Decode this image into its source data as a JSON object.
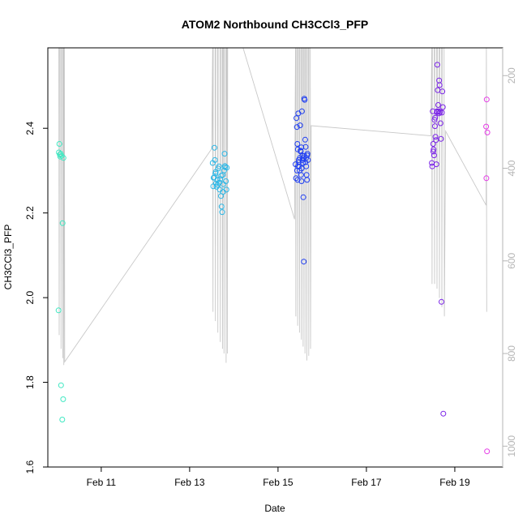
{
  "chart_data": {
    "type": "scatter",
    "title": "ATOM2 Northbound CH3CCl3_PFP",
    "xlabel": "Date",
    "ylabel": "CH3CCl3_PFP",
    "xlim": [
      "2016-02-09T19:00",
      "2016-02-20T02:00"
    ],
    "ylim": [
      1.6,
      2.59
    ],
    "x_ticks": [
      {
        "date": "2016-02-11",
        "label": "Feb 11"
      },
      {
        "date": "2016-02-13",
        "label": "Feb 13"
      },
      {
        "date": "2016-02-15",
        "label": "Feb 15"
      },
      {
        "date": "2016-02-17",
        "label": "Feb 17"
      },
      {
        "date": "2016-02-19",
        "label": "Feb 19"
      }
    ],
    "y_ticks": [
      1.6,
      1.8,
      2.0,
      2.2,
      2.4
    ],
    "secondary_axis": {
      "position": "right",
      "color": "#b5b5b5",
      "ylim": [
        1045,
        140
      ],
      "ticks": [
        200,
        400,
        600,
        800,
        1000
      ],
      "series_color": "#c8c8c8",
      "line": [
        [
          "2016-02-10T01:00",
          140
        ],
        [
          "2016-02-10T01:10",
          760
        ],
        [
          "2016-02-10T01:20",
          140
        ],
        [
          "2016-02-10T02:00",
          140
        ],
        [
          "2016-02-10T02:10",
          790
        ],
        [
          "2016-02-10T02:20",
          140
        ],
        [
          "2016-02-10T03:00",
          140
        ],
        [
          "2016-02-10T03:10",
          810
        ],
        [
          "2016-02-10T03:20",
          140
        ],
        [
          "2016-02-10T03:30",
          140
        ],
        [
          "2016-02-10T03:40",
          825
        ],
        [
          "2016-02-10T03:50",
          140
        ],
        [
          "2016-02-10T04:00",
          140
        ],
        [
          "2016-02-10T04:10",
          818
        ],
        [
          "2016-02-13T12:00",
          358
        ],
        [
          "2016-02-13T12:30",
          140
        ],
        [
          "2016-02-13T12:40",
          710
        ],
        [
          "2016-02-13T12:50",
          140
        ],
        [
          "2016-02-13T13:50",
          140
        ],
        [
          "2016-02-13T14:00",
          730
        ],
        [
          "2016-02-13T14:10",
          140
        ],
        [
          "2016-02-13T15:10",
          140
        ],
        [
          "2016-02-13T15:20",
          755
        ],
        [
          "2016-02-13T15:30",
          140
        ],
        [
          "2016-02-13T16:30",
          140
        ],
        [
          "2016-02-13T16:40",
          775
        ],
        [
          "2016-02-13T16:50",
          140
        ],
        [
          "2016-02-13T17:40",
          140
        ],
        [
          "2016-02-13T17:50",
          790
        ],
        [
          "2016-02-13T18:00",
          140
        ],
        [
          "2016-02-13T18:30",
          140
        ],
        [
          "2016-02-13T18:40",
          800
        ],
        [
          "2016-02-13T18:50",
          140
        ],
        [
          "2016-02-13T19:40",
          140
        ],
        [
          "2016-02-13T19:50",
          820
        ],
        [
          "2016-02-13T20:00",
          140
        ],
        [
          "2016-02-13T20:20",
          140
        ],
        [
          "2016-02-13T20:30",
          800
        ],
        [
          "2016-02-13T20:40",
          140
        ],
        [
          "2016-02-14T05:00",
          140
        ],
        [
          "2016-02-15T09:00",
          510
        ],
        [
          "2016-02-15T09:30",
          140
        ],
        [
          "2016-02-15T09:40",
          720
        ],
        [
          "2016-02-15T09:50",
          140
        ],
        [
          "2016-02-15T10:30",
          140
        ],
        [
          "2016-02-15T10:40",
          740
        ],
        [
          "2016-02-15T10:50",
          140
        ],
        [
          "2016-02-15T11:30",
          140
        ],
        [
          "2016-02-15T11:40",
          755
        ],
        [
          "2016-02-15T11:50",
          140
        ],
        [
          "2016-02-15T12:30",
          140
        ],
        [
          "2016-02-15T12:40",
          770
        ],
        [
          "2016-02-15T12:50",
          140
        ],
        [
          "2016-02-15T13:30",
          140
        ],
        [
          "2016-02-15T13:40",
          785
        ],
        [
          "2016-02-15T13:50",
          140
        ],
        [
          "2016-02-15T14:30",
          140
        ],
        [
          "2016-02-15T14:40",
          800
        ],
        [
          "2016-02-15T14:50",
          140
        ],
        [
          "2016-02-15T15:30",
          140
        ],
        [
          "2016-02-15T15:40",
          815
        ],
        [
          "2016-02-15T15:50",
          140
        ],
        [
          "2016-02-15T16:30",
          140
        ],
        [
          "2016-02-15T16:40",
          805
        ],
        [
          "2016-02-15T16:50",
          140
        ],
        [
          "2016-02-15T17:30",
          140
        ],
        [
          "2016-02-15T17:40",
          790
        ],
        [
          "2016-02-15T18:00",
          308
        ],
        [
          "2016-02-18T11:00",
          330
        ],
        [
          "2016-02-18T11:30",
          140
        ],
        [
          "2016-02-18T11:40",
          650
        ],
        [
          "2016-02-18T11:50",
          140
        ],
        [
          "2016-02-18T12:50",
          140
        ],
        [
          "2016-02-18T13:00",
          650
        ],
        [
          "2016-02-18T13:10",
          140
        ],
        [
          "2016-02-18T14:10",
          140
        ],
        [
          "2016-02-18T14:20",
          660
        ],
        [
          "2016-02-18T14:30",
          140
        ],
        [
          "2016-02-18T15:30",
          140
        ],
        [
          "2016-02-18T15:40",
          680
        ],
        [
          "2016-02-18T15:50",
          140
        ],
        [
          "2016-02-18T16:50",
          140
        ],
        [
          "2016-02-18T17:00",
          700
        ],
        [
          "2016-02-18T17:10",
          140
        ],
        [
          "2016-02-18T18:10",
          140
        ],
        [
          "2016-02-18T18:20",
          720
        ],
        [
          "2016-02-18T19:00",
          320
        ],
        [
          "2016-02-19T17:00",
          480
        ],
        [
          "2016-02-19T17:10",
          140
        ],
        [
          "2016-02-19T17:20",
          710
        ]
      ]
    },
    "series": [
      {
        "color": "#3fe8c2",
        "points": [
          [
            "2016-02-10T01:00",
            2.343
          ],
          [
            "2016-02-10T01:15",
            2.363
          ],
          [
            "2016-02-10T01:30",
            2.338
          ],
          [
            "2016-02-10T01:45",
            2.333
          ],
          [
            "2016-02-10T02:00",
            2.34
          ],
          [
            "2016-02-10T02:30",
            2.335
          ],
          [
            "2016-02-10T03:00",
            2.176
          ],
          [
            "2016-02-10T03:30",
            2.33
          ],
          [
            "2016-02-10T00:50",
            1.97
          ],
          [
            "2016-02-10T02:10",
            1.793
          ],
          [
            "2016-02-10T03:20",
            1.76
          ],
          [
            "2016-02-10T02:50",
            1.712
          ]
        ]
      },
      {
        "color": "#2cb7e6",
        "points": [
          [
            "2016-02-13T12:30",
            2.318
          ],
          [
            "2016-02-13T13:00",
            2.283
          ],
          [
            "2016-02-13T13:30",
            2.354
          ],
          [
            "2016-02-13T13:45",
            2.325
          ],
          [
            "2016-02-13T14:00",
            2.293
          ],
          [
            "2016-02-13T14:20",
            2.27
          ],
          [
            "2016-02-13T14:40",
            2.262
          ],
          [
            "2016-02-13T15:00",
            2.278
          ],
          [
            "2016-02-13T15:30",
            2.305
          ],
          [
            "2016-02-13T16:00",
            2.31
          ],
          [
            "2016-02-13T16:20",
            2.255
          ],
          [
            "2016-02-13T16:40",
            2.28
          ],
          [
            "2016-02-13T17:00",
            2.24
          ],
          [
            "2016-02-13T17:20",
            2.215
          ],
          [
            "2016-02-13T17:40",
            2.202
          ],
          [
            "2016-02-13T18:00",
            2.29
          ],
          [
            "2016-02-13T18:20",
            2.268
          ],
          [
            "2016-02-13T18:40",
            2.3
          ],
          [
            "2016-02-13T19:00",
            2.34
          ],
          [
            "2016-02-13T19:20",
            2.308
          ],
          [
            "2016-02-13T19:40",
            2.275
          ],
          [
            "2016-02-13T20:00",
            2.255
          ],
          [
            "2016-02-13T12:50",
            2.263
          ],
          [
            "2016-02-13T13:20",
            2.284
          ],
          [
            "2016-02-13T14:10",
            2.297
          ],
          [
            "2016-02-13T15:10",
            2.266
          ],
          [
            "2016-02-13T16:10",
            2.272
          ],
          [
            "2016-02-13T17:10",
            2.288
          ],
          [
            "2016-02-13T18:10",
            2.25
          ],
          [
            "2016-02-13T19:10",
            2.311
          ],
          [
            "2016-02-13T20:10",
            2.307
          ]
        ]
      },
      {
        "color": "#1f3ef2",
        "points": [
          [
            "2016-02-15T09:30",
            2.315
          ],
          [
            "2016-02-15T09:45",
            2.282
          ],
          [
            "2016-02-15T10:00",
            2.424
          ],
          [
            "2016-02-15T10:15",
            2.403
          ],
          [
            "2016-02-15T10:30",
            2.363
          ],
          [
            "2016-02-15T10:45",
            2.35
          ],
          [
            "2016-02-15T11:00",
            2.435
          ],
          [
            "2016-02-15T11:15",
            2.325
          ],
          [
            "2016-02-15T11:30",
            2.31
          ],
          [
            "2016-02-15T11:45",
            2.3
          ],
          [
            "2016-02-15T12:00",
            2.407
          ],
          [
            "2016-02-15T12:15",
            2.347
          ],
          [
            "2016-02-15T12:30",
            2.29
          ],
          [
            "2016-02-15T12:45",
            2.275
          ],
          [
            "2016-02-15T13:00",
            2.44
          ],
          [
            "2016-02-15T13:15",
            2.335
          ],
          [
            "2016-02-15T13:30",
            2.318
          ],
          [
            "2016-02-15T13:45",
            2.237
          ],
          [
            "2016-02-15T14:00",
            2.085
          ],
          [
            "2016-02-15T14:15",
            2.47
          ],
          [
            "2016-02-15T14:30",
            2.467
          ],
          [
            "2016-02-15T14:45",
            2.373
          ],
          [
            "2016-02-15T15:00",
            2.356
          ],
          [
            "2016-02-15T15:15",
            2.33
          ],
          [
            "2016-02-15T15:30",
            2.29
          ],
          [
            "2016-02-15T15:45",
            2.278
          ],
          [
            "2016-02-15T16:00",
            2.34
          ],
          [
            "2016-02-15T16:15",
            2.325
          ],
          [
            "2016-02-15T10:20",
            2.3
          ],
          [
            "2016-02-15T10:50",
            2.31
          ],
          [
            "2016-02-15T11:20",
            2.32
          ],
          [
            "2016-02-15T11:50",
            2.33
          ],
          [
            "2016-02-15T12:20",
            2.345
          ],
          [
            "2016-02-15T12:50",
            2.305
          ],
          [
            "2016-02-15T13:20",
            2.325
          ],
          [
            "2016-02-15T13:50",
            2.33
          ],
          [
            "2016-02-15T14:20",
            2.335
          ],
          [
            "2016-02-15T14:50",
            2.32
          ],
          [
            "2016-02-15T15:20",
            2.31
          ],
          [
            "2016-02-15T15:50",
            2.336
          ],
          [
            "2016-02-15T10:40",
            2.278
          ],
          [
            "2016-02-15T12:40",
            2.355
          ]
        ]
      },
      {
        "color": "#7a22e8",
        "points": [
          [
            "2016-02-18T11:30",
            2.318
          ],
          [
            "2016-02-18T11:45",
            2.31
          ],
          [
            "2016-02-18T12:00",
            2.44
          ],
          [
            "2016-02-18T12:15",
            2.363
          ],
          [
            "2016-02-18T12:30",
            2.35
          ],
          [
            "2016-02-18T12:45",
            2.336
          ],
          [
            "2016-02-18T13:00",
            2.42
          ],
          [
            "2016-02-18T13:15",
            2.405
          ],
          [
            "2016-02-18T13:30",
            2.38
          ],
          [
            "2016-02-18T13:45",
            2.372
          ],
          [
            "2016-02-18T14:00",
            2.315
          ],
          [
            "2016-02-18T14:15",
            2.438
          ],
          [
            "2016-02-18T14:30",
            2.55
          ],
          [
            "2016-02-18T14:45",
            2.49
          ],
          [
            "2016-02-18T15:00",
            2.455
          ],
          [
            "2016-02-18T15:15",
            2.44
          ],
          [
            "2016-02-18T15:30",
            2.513
          ],
          [
            "2016-02-18T15:45",
            2.502
          ],
          [
            "2016-02-18T16:00",
            2.438
          ],
          [
            "2016-02-18T16:15",
            2.412
          ],
          [
            "2016-02-18T16:30",
            2.375
          ],
          [
            "2016-02-18T16:45",
            1.99
          ],
          [
            "2016-02-18T17:00",
            2.437
          ],
          [
            "2016-02-18T17:15",
            2.487
          ],
          [
            "2016-02-18T17:30",
            2.45
          ],
          [
            "2016-02-18T17:45",
            1.726
          ],
          [
            "2016-02-18T12:20",
            2.345
          ],
          [
            "2016-02-18T13:20",
            2.425
          ],
          [
            "2016-02-18T14:20",
            2.44
          ],
          [
            "2016-02-18T15:20",
            2.435
          ]
        ]
      },
      {
        "color": "#e53ae6",
        "points": [
          [
            "2016-02-19T17:00",
            2.404
          ],
          [
            "2016-02-19T17:20",
            2.468
          ],
          [
            "2016-02-19T17:40",
            2.39
          ],
          [
            "2016-02-19T17:10",
            2.282
          ],
          [
            "2016-02-19T17:30",
            1.637
          ]
        ]
      }
    ]
  }
}
